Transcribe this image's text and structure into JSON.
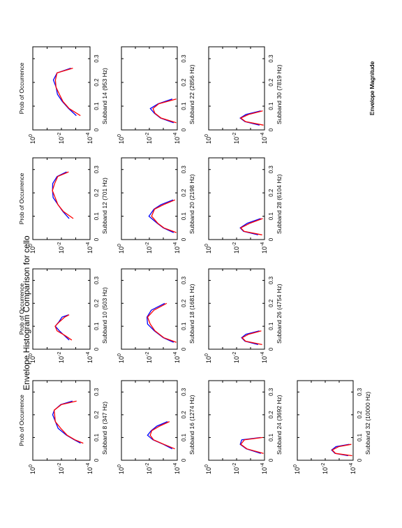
{
  "figure": {
    "title": "Envelope Histogram Comparison for cello",
    "ylabel": "Prob of Occurrence",
    "xlabel": "Envelope Magnitude"
  },
  "chart_data": {
    "type": "line",
    "title": "Envelope Histogram Comparison for cello",
    "xlabel": "Envelope Magnitude",
    "ylabel": "Prob of Occurrence",
    "xlim": [
      0,
      0.35
    ],
    "ylim_log10": [
      -4,
      0
    ],
    "yscale": "log",
    "x_ticks": [
      "0",
      "0.1",
      "0.2",
      "0.3"
    ],
    "y_ticks": [
      "10^0",
      "10^-2",
      "10^-4"
    ],
    "colors": {
      "series_a": "#0000ff",
      "series_b": "#ff0000"
    },
    "orientation": "rotated-90-ccw",
    "grid": false,
    "subplots": [
      {
        "label": "Subband 8",
        "freq": "(347 Hz)",
        "x": [
          0.075,
          0.09,
          0.11,
          0.14,
          0.17,
          0.2,
          0.22,
          0.245,
          0.26
        ],
        "series": [
          {
            "values": [
              -3.4,
              -2.9,
              -2.3,
              -1.8,
              -1.55,
              -1.45,
              -1.5,
              -1.9,
              -2.8
            ]
          },
          {
            "values": [
              -3.5,
              -3.0,
              -2.4,
              -1.9,
              -1.6,
              -1.5,
              -1.55,
              -2.0,
              -3.0
            ]
          }
        ]
      },
      {
        "label": "Subband 10",
        "freq": "(503 Hz)",
        "x": [
          0.04,
          0.06,
          0.08,
          0.1,
          0.12,
          0.14,
          0.15
        ],
        "series": [
          {
            "values": [
              -2.6,
              -2.2,
              -1.8,
              -1.6,
              -1.8,
              -2.1,
              -2.5
            ]
          },
          {
            "values": [
              -2.7,
              -2.3,
              -1.7,
              -1.5,
              -1.9,
              -2.2,
              -2.6
            ]
          }
        ]
      },
      {
        "label": "Subband 12",
        "freq": "(701 Hz)",
        "x": [
          0.09,
          0.12,
          0.15,
          0.18,
          0.21,
          0.24,
          0.27,
          0.29
        ],
        "series": [
          {
            "values": [
              -2.6,
              -2.1,
              -1.7,
              -1.45,
              -1.35,
              -1.45,
              -1.7,
              -2.3
            ]
          },
          {
            "values": [
              -2.8,
              -2.2,
              -1.75,
              -1.5,
              -1.4,
              -1.5,
              -1.8,
              -2.5
            ]
          }
        ]
      },
      {
        "label": "Subband 14",
        "freq": "(953 Hz)",
        "x": [
          0.06,
          0.09,
          0.12,
          0.15,
          0.18,
          0.21,
          0.24,
          0.26
        ],
        "series": [
          {
            "values": [
              -3.1,
              -2.5,
              -2.0,
              -1.75,
              -1.6,
              -1.5,
              -1.7,
              -2.6
            ]
          },
          {
            "values": [
              -3.3,
              -2.6,
              -2.1,
              -1.8,
              -1.65,
              -1.55,
              -1.75,
              -2.8
            ]
          }
        ]
      },
      {
        "label": "Subband 16",
        "freq": "(1274 Hz)",
        "x": [
          0.05,
          0.07,
          0.09,
          0.11,
          0.13,
          0.15,
          0.17
        ],
        "series": [
          {
            "values": [
              -3.7,
              -3.0,
              -2.2,
              -1.9,
              -2.1,
              -2.6,
              -3.3
            ]
          },
          {
            "values": [
              -3.8,
              -3.1,
              -2.3,
              -2.0,
              -2.2,
              -2.7,
              -3.5
            ]
          }
        ]
      },
      {
        "label": "Subband 18",
        "freq": "(1681 Hz)",
        "x": [
          0.03,
          0.05,
          0.08,
          0.11,
          0.14,
          0.17,
          0.2
        ],
        "series": [
          {
            "values": [
              -3.8,
              -3.0,
              -2.3,
              -1.9,
              -1.8,
              -2.2,
              -3.1
            ]
          },
          {
            "values": [
              -3.9,
              -3.1,
              -2.4,
              -2.0,
              -1.9,
              -2.3,
              -3.3
            ]
          }
        ]
      },
      {
        "label": "Subband 20",
        "freq": "(2198 Hz)",
        "x": [
          0.03,
          0.05,
          0.07,
          0.1,
          0.13,
          0.15,
          0.17
        ],
        "series": [
          {
            "values": [
              -3.8,
              -3.0,
              -2.5,
              -2.0,
              -2.3,
              -2.9,
              -3.7
            ]
          },
          {
            "values": [
              -3.9,
              -3.1,
              -2.6,
              -2.1,
              -2.4,
              -3.0,
              -3.9
            ]
          }
        ]
      },
      {
        "label": "Subband 22",
        "freq": "(2856 Hz)",
        "x": [
          0.03,
          0.05,
          0.07,
          0.09,
          0.11,
          0.13
        ],
        "series": [
          {
            "values": [
              -3.8,
              -2.8,
              -2.3,
              -2.1,
              -2.6,
              -3.7
            ]
          },
          {
            "values": [
              -3.9,
              -2.9,
              -2.4,
              -2.2,
              -2.7,
              -3.9
            ]
          }
        ]
      },
      {
        "label": "Subband 24",
        "freq": "(3692 Hz)",
        "x": [
          0.03,
          0.05,
          0.07,
          0.09,
          0.1
        ],
        "series": [
          {
            "values": [
              -3.8,
              -2.7,
              -2.2,
              -2.4,
              -3.7
            ]
          },
          {
            "values": [
              -3.9,
              -2.8,
              -2.3,
              -2.5,
              -3.9
            ]
          }
        ]
      },
      {
        "label": "Subband 26",
        "freq": "(4754 Hz)",
        "x": [
          0.02,
          0.035,
          0.05,
          0.065,
          0.08
        ],
        "series": [
          {
            "values": [
              -3.6,
              -2.6,
              -2.3,
              -2.7,
              -3.6
            ]
          },
          {
            "values": [
              -3.8,
              -2.7,
              -2.4,
              -2.8,
              -3.8
            ]
          }
        ]
      },
      {
        "label": "Subband 28",
        "freq": "(6104 Hz)",
        "x": [
          0.02,
          0.035,
          0.05,
          0.07,
          0.09
        ],
        "series": [
          {
            "values": [
              -3.6,
              -2.5,
              -2.2,
              -2.8,
              -3.7
            ]
          },
          {
            "values": [
              -3.8,
              -2.6,
              -2.3,
              -2.9,
              -3.9
            ]
          }
        ]
      },
      {
        "label": "Subband 30",
        "freq": "(7819 Hz)",
        "x": [
          0.02,
          0.035,
          0.05,
          0.065,
          0.08
        ],
        "series": [
          {
            "values": [
              -3.7,
              -2.6,
              -2.2,
              -2.7,
              -3.7
            ]
          },
          {
            "values": [
              -3.9,
              -2.7,
              -2.3,
              -2.8,
              -3.9
            ]
          }
        ]
      },
      {
        "label": "Subband 32",
        "freq": "(10000 Hz)",
        "x": [
          0.02,
          0.03,
          0.045,
          0.06,
          0.07
        ],
        "series": [
          {
            "values": [
              -3.7,
              -2.7,
              -2.4,
              -2.8,
              -3.7
            ]
          },
          {
            "values": [
              -3.9,
              -2.8,
              -2.5,
              -2.9,
              -3.9
            ]
          }
        ]
      }
    ]
  }
}
